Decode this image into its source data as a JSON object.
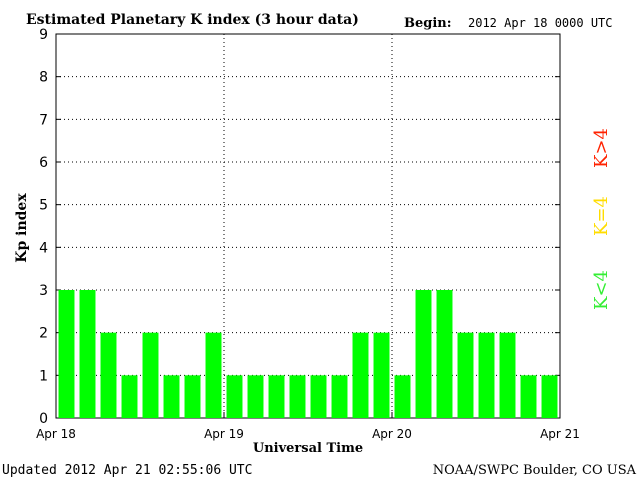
{
  "chart_data": {
    "type": "bar",
    "title": "Estimated Planetary K index (3 hour data)",
    "begin_label": "Begin:",
    "begin_value": "2012 Apr 18 0000 UTC",
    "xlabel": "Universal Time",
    "ylabel": "Kp index",
    "ylim": [
      0,
      9
    ],
    "yticks": [
      "0",
      "1",
      "2",
      "3",
      "4",
      "5",
      "6",
      "7",
      "8",
      "9"
    ],
    "xticks": [
      "Apr 18",
      "Apr 19",
      "Apr 20",
      "Apr 21"
    ],
    "values": [
      3,
      3,
      2,
      1,
      2,
      1,
      1,
      2,
      1,
      1,
      1,
      1,
      1,
      1,
      2,
      2,
      1,
      3,
      3,
      2,
      2,
      2,
      1,
      1
    ],
    "bar_color": "#00ff00",
    "grid": true,
    "legend": [
      {
        "label": "K>4",
        "color": "#ff2200"
      },
      {
        "label": "K=4",
        "color": "#ffdd00"
      },
      {
        "label": "K<4",
        "color": "#33ee33"
      }
    ]
  },
  "footer": {
    "updated": "Updated 2012 Apr 21 02:55:06 UTC",
    "source": "NOAA/SWPC Boulder, CO USA"
  }
}
